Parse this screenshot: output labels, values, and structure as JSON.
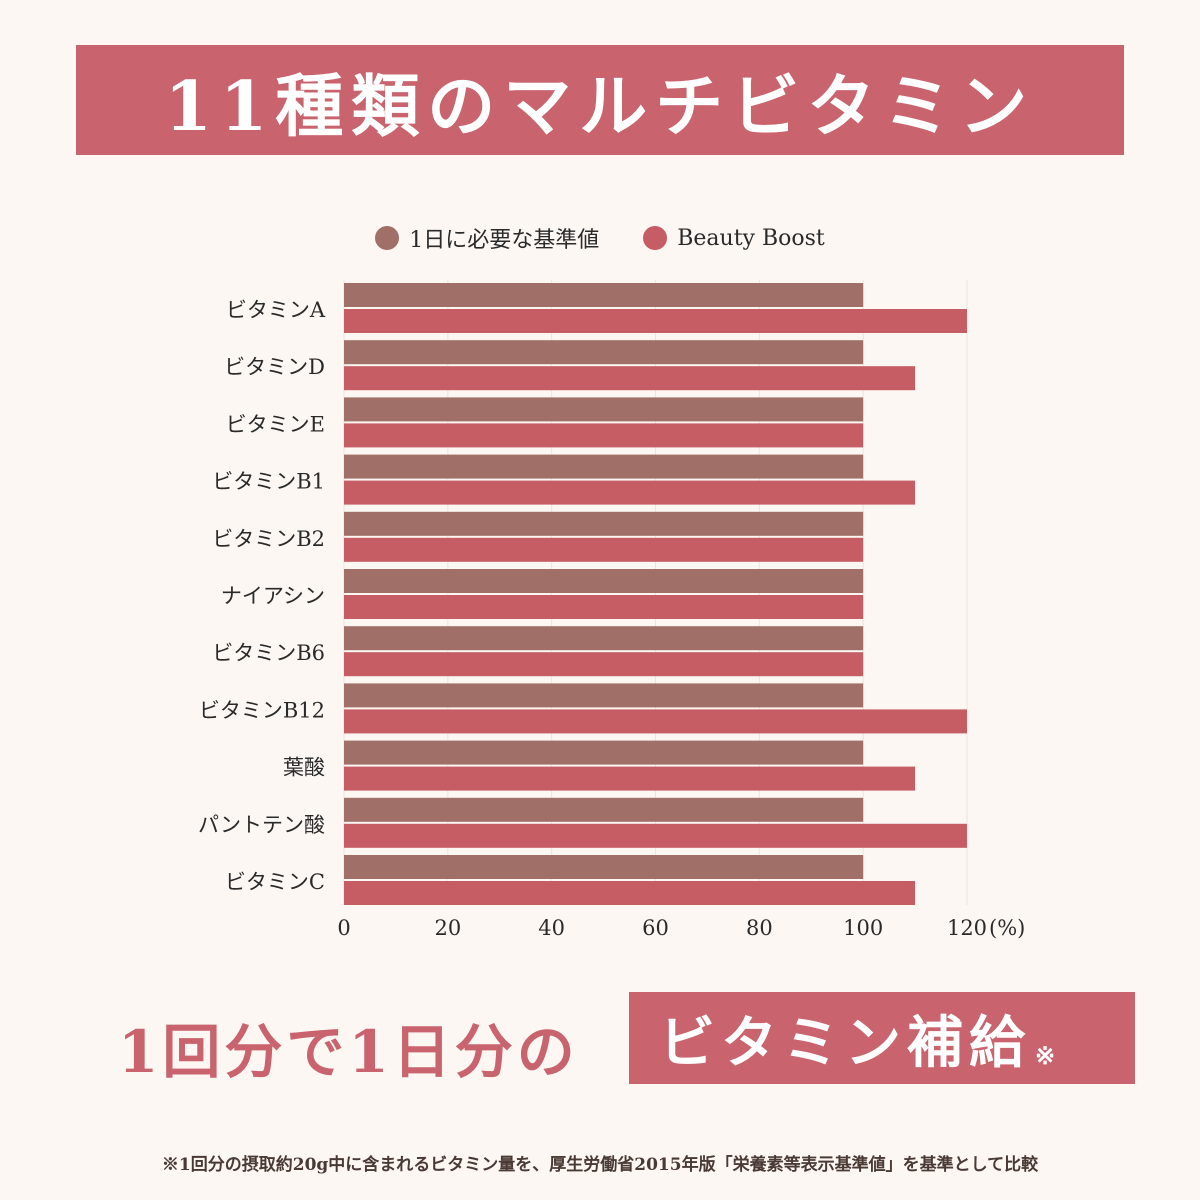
{
  "header": {
    "title": "11種類のマルチビタミン"
  },
  "colors": {
    "reference": "#a07068",
    "product": "#c65c64",
    "accent": "#c9646f",
    "background": "#fcf7f3"
  },
  "chart_data": {
    "type": "bar",
    "orientation": "horizontal",
    "categories": [
      "ビタミンA",
      "ビタミンD",
      "ビタミンE",
      "ビタミンB1",
      "ビタミンB2",
      "ナイアシン",
      "ビタミンB6",
      "ビタミンB12",
      "葉酸",
      "パントテン酸",
      "ビタミンC"
    ],
    "series": [
      {
        "name": "1日に必要な基準値",
        "values": [
          100,
          100,
          100,
          100,
          100,
          100,
          100,
          100,
          100,
          100,
          100
        ]
      },
      {
        "name": "Beauty Boost",
        "values": [
          120,
          110,
          100,
          110,
          100,
          100,
          100,
          120,
          110,
          120,
          110
        ]
      }
    ],
    "xlim": [
      0,
      120
    ],
    "xticks": [
      "0",
      "20",
      "40",
      "60",
      "80",
      "100",
      "120"
    ],
    "xunit": "(%)",
    "grid": true,
    "legend": "top-center"
  },
  "summary": {
    "lead": "1回分で1日分の",
    "highlight": "ビタミン補給",
    "mark": "※"
  },
  "footnote": "※1回分の摂取約20g中に含まれるビタミン量を、厚生労働省2015年版「栄養素等表示基準値」を基準として比較"
}
